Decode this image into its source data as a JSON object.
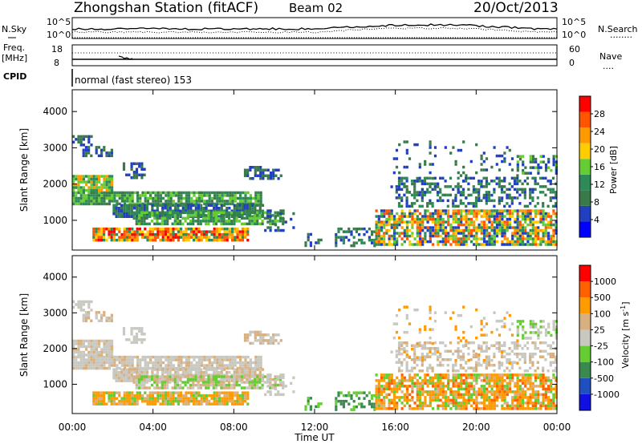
{
  "header": {
    "station": "Zhongshan Station (fitACF)",
    "beam": "Beam 02",
    "date": "20/Oct/2013"
  },
  "strip_labels": {
    "nsky": "N.Sky",
    "nsearch": "N.Search",
    "nsearch_line": "........",
    "freq": "Freq.",
    "freq_unit": "[MHz]",
    "nave": "Nave",
    "nave_line": "....",
    "cpid": "CPID",
    "cpid_text": "normal (fast stereo) 153"
  },
  "strip_ticks": {
    "noise_left_top": "10^5",
    "noise_left_bottom": "10^0",
    "noise_right_top": "10^5",
    "noise_right_bottom": "10^0",
    "freq_left_top": "18",
    "freq_left_bottom": "8",
    "nave_right_top": "60",
    "nave_right_bottom": "0"
  },
  "colors": {
    "power_scale": [
      "#0000ff",
      "#2040c0",
      "#3a7a4a",
      "#2e8b57",
      "#66cc33",
      "#ffcc00",
      "#ff9900",
      "#ff5500",
      "#ff0000"
    ],
    "velocity_scale": [
      "#1010e0",
      "#2050c0",
      "#3a8a50",
      "#66cc33",
      "#c8c8c0",
      "#d8b080",
      "#ff9a00",
      "#ff6000",
      "#ff0000"
    ]
  },
  "chart_data": [
    {
      "type": "heatmap",
      "title": "Power",
      "xlabel": "",
      "ylabel": "Slant Range [km]",
      "xlim": [
        "00:00",
        "00:00"
      ],
      "ylim": [
        180,
        4600
      ],
      "x_ticks": [
        "00:00",
        "04:00",
        "08:00",
        "12:00",
        "16:00",
        "20:00",
        "00:00"
      ],
      "y_ticks": [
        1000,
        2000,
        3000,
        4000
      ],
      "colorbar": {
        "label": "Power [dB]",
        "ticks": [
          4,
          8,
          12,
          16,
          20,
          24,
          28
        ]
      }
    },
    {
      "type": "heatmap",
      "title": "Velocity",
      "xlabel": "Time UT",
      "ylabel": "Slant Range [km]",
      "xlim": [
        "00:00",
        "00:00"
      ],
      "ylim": [
        180,
        4600
      ],
      "x_ticks": [
        "00:00",
        "04:00",
        "08:00",
        "12:00",
        "16:00",
        "20:00",
        "00:00"
      ],
      "y_ticks": [
        1000,
        2000,
        3000,
        4000
      ],
      "colorbar": {
        "label": "Velocity [m s^-1]",
        "ticks": [
          1000,
          500,
          100,
          25,
          -25,
          -100,
          -500,
          -1000
        ]
      }
    }
  ]
}
